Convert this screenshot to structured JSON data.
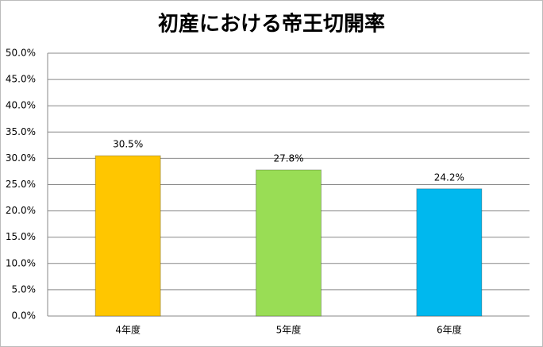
{
  "chart_data": {
    "type": "bar",
    "title": "初産における帝王切開率",
    "categories": [
      "4年度",
      "5年度",
      "6年度"
    ],
    "values": [
      30.5,
      27.8,
      24.2
    ],
    "value_labels": [
      "30.5%",
      "27.8%",
      "24.2%"
    ],
    "colors": [
      "#ffc600",
      "#99dd55",
      "#00b8ee"
    ],
    "ylim": [
      0,
      50
    ],
    "yticks": [
      {
        "value": 0,
        "label": "0.0%"
      },
      {
        "value": 5,
        "label": "5.0%"
      },
      {
        "value": 10,
        "label": "10.0%"
      },
      {
        "value": 15,
        "label": "15.0%"
      },
      {
        "value": 20,
        "label": "20.0%"
      },
      {
        "value": 25,
        "label": "25.0%"
      },
      {
        "value": 30,
        "label": "30.0%"
      },
      {
        "value": 35,
        "label": "35.0%"
      },
      {
        "value": 40,
        "label": "40.0%"
      },
      {
        "value": 45,
        "label": "45.0%"
      },
      {
        "value": 50,
        "label": "50.0%"
      }
    ],
    "grid": true
  }
}
